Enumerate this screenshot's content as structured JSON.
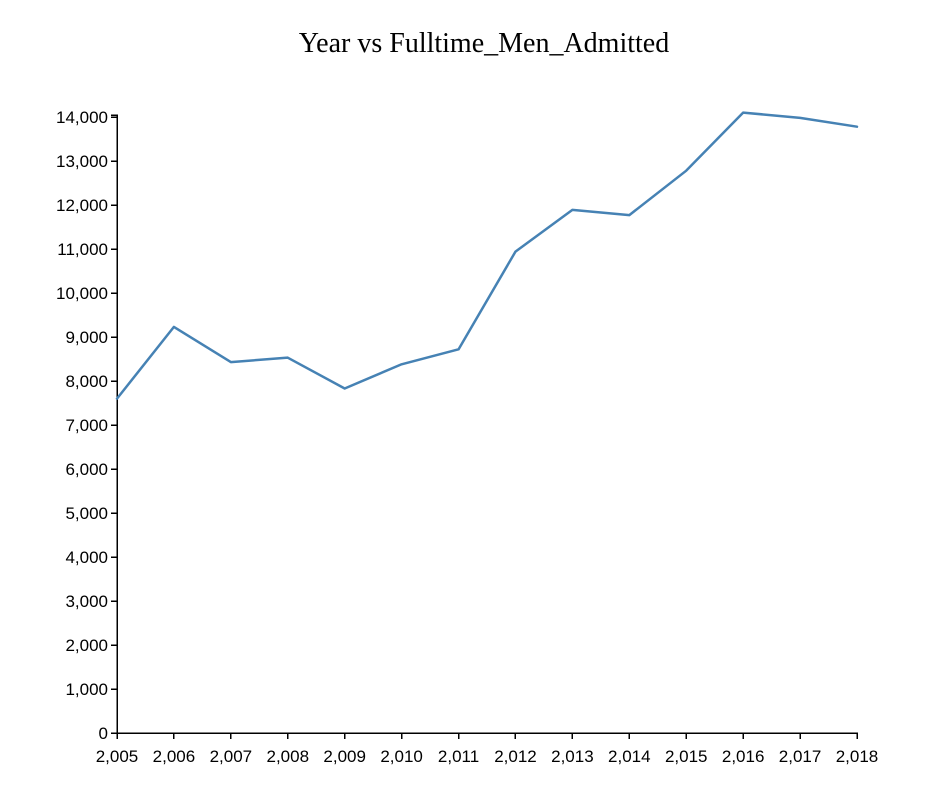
{
  "chart_data": {
    "type": "line",
    "title": "Year vs Fulltime_Men_Admitted",
    "xlabel": "",
    "ylabel": "",
    "x": [
      2005,
      2006,
      2007,
      2008,
      2009,
      2010,
      2011,
      2012,
      2013,
      2014,
      2015,
      2016,
      2017,
      2018
    ],
    "series": [
      {
        "values": [
          7600,
          9230,
          8430,
          8530,
          7830,
          8380,
          8720,
          10940,
          11890,
          11770,
          12780,
          14100,
          13980,
          13780
        ],
        "color": "#4682b4"
      }
    ],
    "xlim": [
      2005,
      2018
    ],
    "ylim": [
      0,
      14000
    ],
    "x_ticks": [
      2005,
      2006,
      2007,
      2008,
      2009,
      2010,
      2011,
      2012,
      2013,
      2014,
      2015,
      2016,
      2017,
      2018
    ],
    "y_ticks": [
      0,
      1000,
      2000,
      3000,
      4000,
      5000,
      6000,
      7000,
      8000,
      9000,
      10000,
      11000,
      12000,
      13000,
      14000
    ],
    "x_tick_labels": [
      "2,005",
      "2,006",
      "2,007",
      "2,008",
      "2,009",
      "2,010",
      "2,011",
      "2,012",
      "2,013",
      "2,014",
      "2,015",
      "2,016",
      "2,017",
      "2,018"
    ],
    "y_tick_labels": [
      "0",
      "1,000",
      "2,000",
      "3,000",
      "4,000",
      "5,000",
      "6,000",
      "7,000",
      "8,000",
      "9,000",
      "10,000",
      "11,000",
      "12,000",
      "13,000",
      "14,000"
    ],
    "grid": false,
    "legend": "none"
  }
}
